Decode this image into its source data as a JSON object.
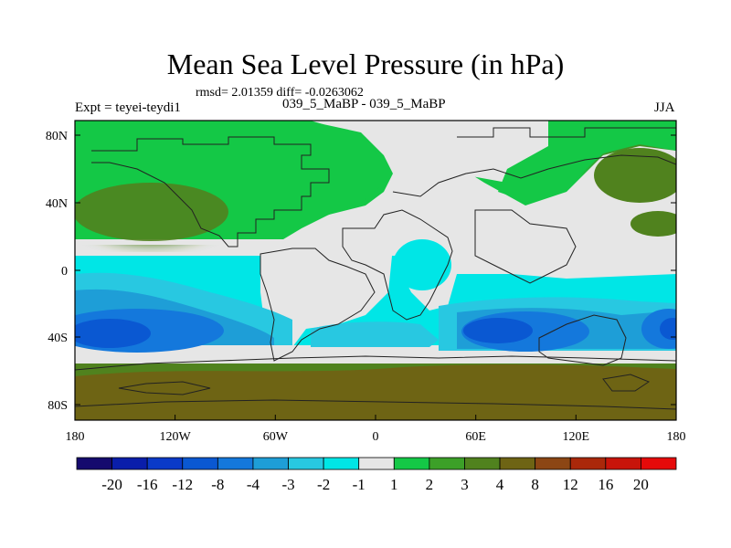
{
  "figure": {
    "title": "Mean Sea Level Pressure (in hPa)",
    "subtitle": "rmsd= 2.01359 diff= -0.0263062",
    "left_label": "Expt = teyei-teydi1",
    "center_label": "039_5_MaBP - 039_5_MaBP",
    "right_label": "JJA"
  },
  "axes": {
    "lat_ticks": [
      "80N",
      "40N",
      "0",
      "40S",
      "80S"
    ],
    "lon_ticks": [
      "180",
      "120W",
      "60W",
      "0",
      "60E",
      "120E",
      "180"
    ]
  },
  "colorbar": {
    "labels": [
      "-20",
      "-16",
      "-12",
      "-8",
      "-4",
      "-3",
      "-2",
      "-1",
      "1",
      "2",
      "3",
      "4",
      "8",
      "12",
      "16",
      "20"
    ],
    "colors": [
      "#150a6e",
      "#0a1eaa",
      "#0a3ac8",
      "#0a58d2",
      "#1478dc",
      "#1e9ed7",
      "#28c8e1",
      "#00e6e6",
      "#e6e6e6",
      "#14c846",
      "#3ca028",
      "#50821e",
      "#6e6414",
      "#8c4614",
      "#aa280a",
      "#c8140a",
      "#e60a0a"
    ]
  }
}
